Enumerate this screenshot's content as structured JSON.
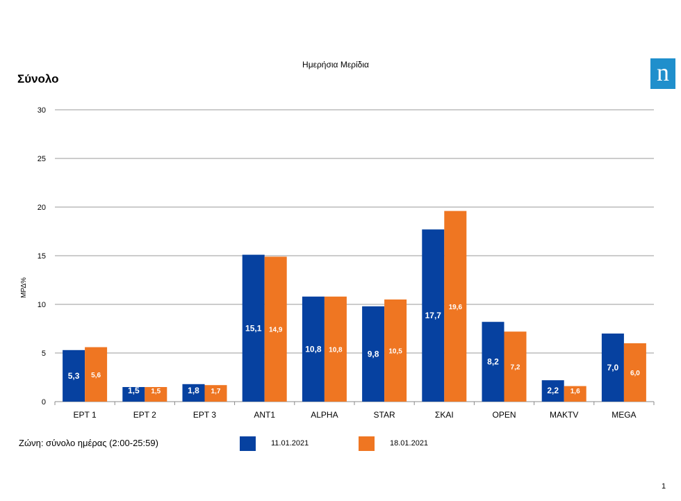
{
  "header": {
    "chart_title": "Ημερήσια Μερίδια",
    "section_title": "Σύνολο",
    "logo_letter": "n"
  },
  "footer": {
    "zone_text": "Ζώνη: σύνολο ημέρας (2:00-25:59)",
    "page_number": "1"
  },
  "colors": {
    "series1": "#0641a0",
    "series2": "#ef7622",
    "logo": "#1f8fcc"
  },
  "chart_data": {
    "type": "bar",
    "ylabel": "ΜΡΔ%",
    "xlabel": "",
    "ylim": [
      0,
      30
    ],
    "yticks": [
      0,
      5,
      10,
      15,
      20,
      25,
      30
    ],
    "grid": true,
    "legend_placement": "bottom",
    "categories": [
      "ΕΡΤ 1",
      "ΕΡΤ 2",
      "ΕΡΤ 3",
      "ΑΝΤ1",
      "ALPHA",
      "STAR",
      "ΣΚΑΙ",
      "OPEN",
      "MAKTV",
      "MEGA"
    ],
    "series": [
      {
        "name": "11.01.2021",
        "values": [
          5.3,
          1.5,
          1.8,
          15.1,
          10.8,
          9.8,
          17.7,
          8.2,
          2.2,
          7.0
        ],
        "labels": [
          "5,3",
          "1,5",
          "1,8",
          "15,1",
          "10,8",
          "9,8",
          "17,7",
          "8,2",
          "2,2",
          "7,0"
        ]
      },
      {
        "name": "18.01.2021",
        "values": [
          5.6,
          1.5,
          1.7,
          14.9,
          10.8,
          10.5,
          19.6,
          7.2,
          1.6,
          6.0
        ],
        "labels": [
          "5,6",
          "1,5",
          "1,7",
          "14,9",
          "10,8",
          "10,5",
          "19,6",
          "7,2",
          "1,6",
          "6,0"
        ]
      }
    ]
  }
}
